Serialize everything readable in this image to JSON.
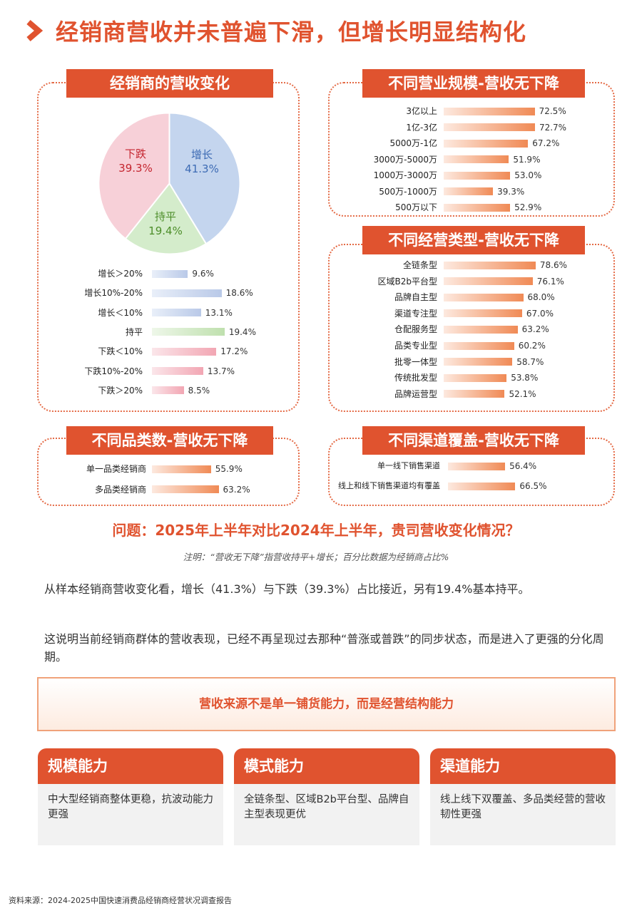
{
  "title": "经销商营收并未普遍下滑，但增长明显结构化",
  "colors": {
    "accent": "#e0532f",
    "pie_growth": "#c4d5ee",
    "pie_flat": "#d4eccb",
    "pie_decline": "#f7d0d8",
    "growth_text": "#3d6bb4",
    "flat_text": "#4d8e2a",
    "decline_text": "#c4252f"
  },
  "chart_data": [
    {
      "type": "pie",
      "title": "经销商的营收变化",
      "slices": [
        {
          "name": "增长",
          "value": 41.3,
          "label": "41.3%"
        },
        {
          "name": "持平",
          "value": 19.4,
          "label": "19.4%"
        },
        {
          "name": "下跌",
          "value": 39.3,
          "label": "39.3%"
        }
      ]
    },
    {
      "type": "bar",
      "orientation": "horizontal",
      "categories": [
        "增长＞20%",
        "增长10%-20%",
        "增长＜10%",
        "持平",
        "下跌＜10%",
        "下跌10%-20%",
        "下跌＞20%"
      ],
      "values": [
        9.6,
        18.6,
        13.1,
        19.4,
        17.2,
        13.7,
        8.5
      ],
      "labels": [
        "9.6%",
        "18.6%",
        "13.1%",
        "19.4%",
        "17.2%",
        "13.7%",
        "8.5%"
      ]
    },
    {
      "type": "bar",
      "orientation": "horizontal",
      "title": "不同营业规模-营收无下降",
      "categories": [
        "3亿以上",
        "1亿-3亿",
        "5000万-1亿",
        "3000万-5000万",
        "1000万-3000万",
        "500万-1000万",
        "500万以下"
      ],
      "values": [
        72.5,
        72.7,
        67.2,
        51.9,
        53.0,
        39.3,
        52.9
      ],
      "labels": [
        "72.5%",
        "72.7%",
        "67.2%",
        "51.9%",
        "53.0%",
        "39.3%",
        "52.9%"
      ]
    },
    {
      "type": "bar",
      "orientation": "horizontal",
      "title": "不同经营类型-营收无下降",
      "categories": [
        "全链条型",
        "区域B2b平台型",
        "品牌自主型",
        "渠道专注型",
        "仓配服务型",
        "品类专业型",
        "批零一体型",
        "传统批发型",
        "品牌运营型"
      ],
      "values": [
        78.6,
        76.1,
        68.0,
        67.0,
        63.2,
        60.2,
        58.7,
        53.8,
        52.1
      ],
      "labels": [
        "78.6%",
        "76.1%",
        "68.0%",
        "67.0%",
        "63.2%",
        "60.2%",
        "58.7%",
        "53.8%",
        "52.1%"
      ]
    },
    {
      "type": "bar",
      "orientation": "horizontal",
      "title": "不同品类数-营收无下降",
      "categories": [
        "单一品类经销商",
        "多品类经销商"
      ],
      "values": [
        55.9,
        63.2
      ],
      "labels": [
        "55.9%",
        "63.2%"
      ]
    },
    {
      "type": "bar",
      "orientation": "horizontal",
      "title": "不同渠道覆盖-营收无下降",
      "categories": [
        "单一线下销售渠道",
        "线上和线下销售渠道均有覆盖"
      ],
      "values": [
        56.4,
        66.5
      ],
      "labels": [
        "56.4%",
        "66.5%"
      ]
    }
  ],
  "question": "问题：2025年上半年对比2024年上半年，贵司营收变化情况？",
  "note": "注明：“营收无下降”指营收持平+增长；百分比数据为经销商占比%",
  "paragraphs": [
    "从样本经销商营收变化看，增长（41.3%）与下跌（39.3%）占比接近，另有19.4%基本持平。",
    "这说明当前经销商群体的营收表现，已经不再呈现过去那种“普涨或普跌”的同步状态，而是进入了更强的分化周期。"
  ],
  "highlight": "营收来源不是单一铺货能力，而是经营结构能力",
  "cards": [
    {
      "title": "规模能力",
      "text": "中大型经销商整体更稳，抗波动能力更强"
    },
    {
      "title": "模式能力",
      "text": "全链条型、区域B2b平台型、品牌自主型表现更优"
    },
    {
      "title": "渠道能力",
      "text": "线上线下双覆盖、多品类经营的营收韧性更强"
    }
  ],
  "source": "资料来源：2024-2025中国快速消费品经销商经营状况调查报告"
}
